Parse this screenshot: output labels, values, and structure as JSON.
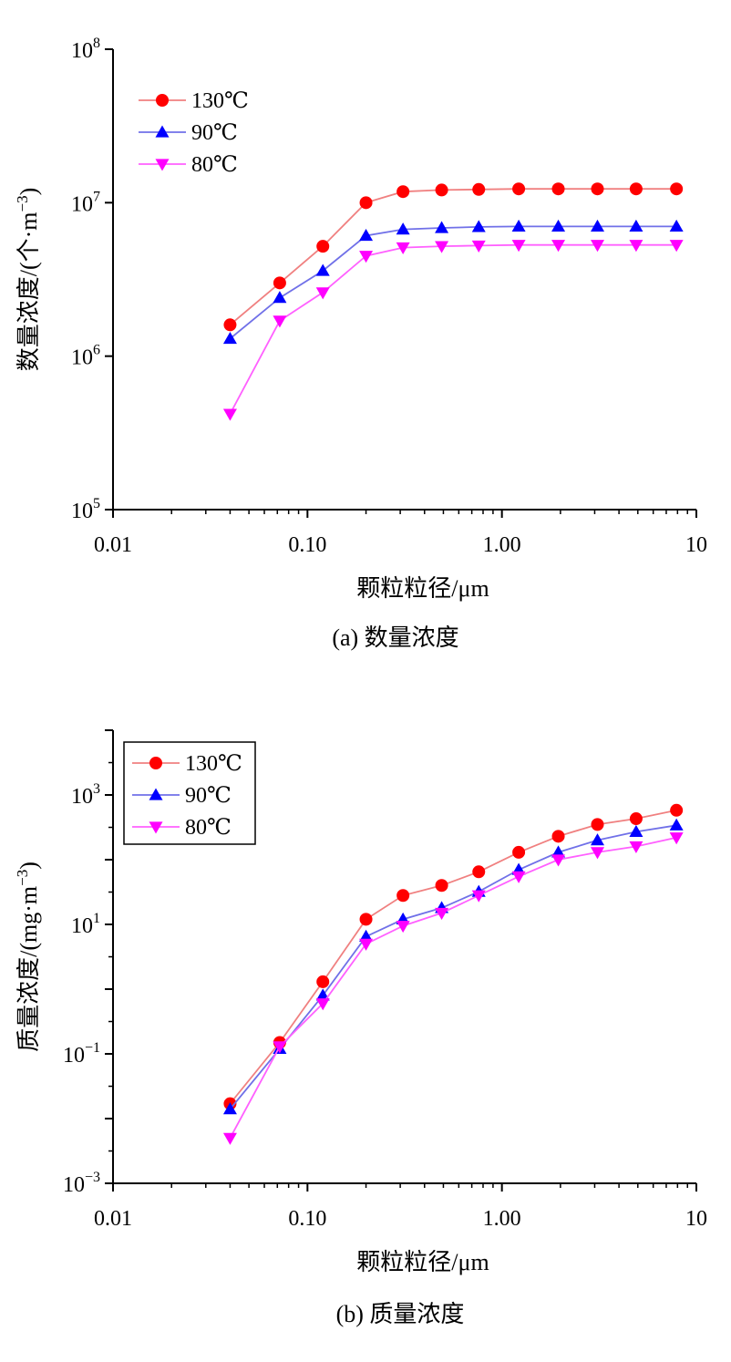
{
  "chart_data": [
    {
      "type": "line",
      "caption": "(a) 数量浓度",
      "xlabel": "颗粒粒径/μm",
      "ylabel": "数量浓度/(个·m⁻³)",
      "x_scale": "log",
      "y_scale": "log",
      "xlim": [
        0.01,
        10
      ],
      "ylim": [
        100000,
        100000000
      ],
      "x_tick_labels": [
        "0.01",
        "0.10",
        "1.00",
        "10"
      ],
      "y_tick_labels": [
        {
          "base": "10",
          "exp": "5"
        },
        {
          "base": "10",
          "exp": "6"
        },
        {
          "base": "10",
          "exp": "7"
        },
        {
          "base": "10",
          "exp": "8"
        }
      ],
      "legend": "top-left",
      "legend_box": false,
      "x": [
        0.04,
        0.072,
        0.12,
        0.2,
        0.31,
        0.49,
        0.76,
        1.22,
        1.95,
        3.1,
        4.9,
        7.9
      ],
      "series": [
        {
          "name": "130℃",
          "marker": "circle",
          "line_color": "#f08080",
          "marker_color": "#ff0000",
          "values": [
            1600000,
            3000000,
            5200000,
            10000000,
            11800000,
            12100000,
            12200000,
            12300000,
            12300000,
            12300000,
            12300000,
            12300000
          ]
        },
        {
          "name": "90℃",
          "marker": "triangle-up",
          "line_color": "#7070e8",
          "marker_color": "#0000ff",
          "values": [
            1300000,
            2400000,
            3600000,
            6100000,
            6700000,
            6850000,
            6950000,
            7000000,
            7000000,
            7000000,
            7000000,
            7000000
          ]
        },
        {
          "name": "80℃",
          "marker": "triangle-down",
          "line_color": "#ff60ff",
          "marker_color": "#ff00ff",
          "values": [
            420000,
            1700000,
            2600000,
            4500000,
            5100000,
            5200000,
            5250000,
            5300000,
            5300000,
            5300000,
            5300000,
            5300000
          ]
        }
      ]
    },
    {
      "type": "line",
      "caption": "(b) 质量浓度",
      "xlabel": "颗粒粒径/μm",
      "ylabel": "质量浓度/(mg·m⁻³)",
      "x_scale": "log",
      "y_scale": "log",
      "xlim": [
        0.01,
        10
      ],
      "ylim": [
        0.001,
        10000
      ],
      "x_tick_labels": [
        "0.01",
        "0.10",
        "1.00",
        "10"
      ],
      "y_tick_labels": [
        {
          "base": "10",
          "exp": "−3"
        },
        {
          "base": "10",
          "exp": "−1"
        },
        {
          "base": "10",
          "exp": "1"
        },
        {
          "base": "10",
          "exp": "3"
        }
      ],
      "legend": "top-left",
      "legend_box": true,
      "x": [
        0.04,
        0.072,
        0.12,
        0.2,
        0.31,
        0.49,
        0.76,
        1.22,
        1.95,
        3.1,
        4.9,
        7.9
      ],
      "series": [
        {
          "name": "130℃",
          "marker": "circle",
          "line_color": "#f08080",
          "marker_color": "#ff0000",
          "values": [
            0.017,
            0.15,
            1.3,
            12,
            28,
            40,
            65,
            130,
            230,
            350,
            430,
            580
          ]
        },
        {
          "name": "90℃",
          "marker": "triangle-up",
          "line_color": "#7070e8",
          "marker_color": "#0000ff",
          "values": [
            0.014,
            0.12,
            0.8,
            6.5,
            12,
            18,
            32,
            70,
            130,
            200,
            270,
            340
          ]
        },
        {
          "name": "80℃",
          "marker": "triangle-down",
          "line_color": "#ff60ff",
          "marker_color": "#ff00ff",
          "values": [
            0.005,
            0.13,
            0.6,
            5,
            9.5,
            15,
            28,
            55,
            100,
            130,
            160,
            220
          ]
        }
      ]
    }
  ]
}
